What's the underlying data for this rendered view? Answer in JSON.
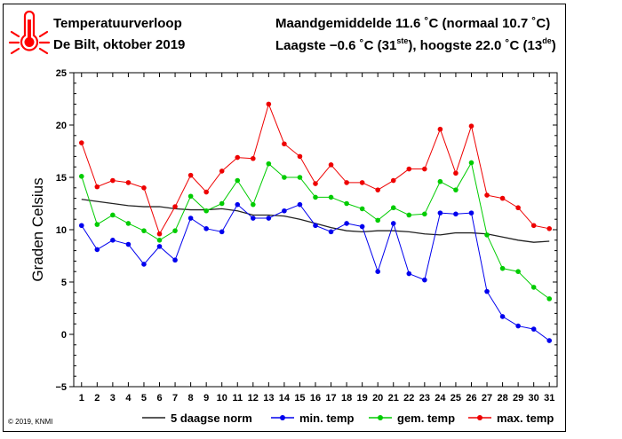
{
  "header": {
    "title": "Temperatuurverloop",
    "subtitle": "De Bilt, oktober 2019",
    "monthly_avg": "Maandgemiddelde 11.6 ˚C (normaal 10.7 ˚C)",
    "extremes_text_1": "Laagste −0.6 ˚C (31",
    "extremes_sup_1": "ste",
    "extremes_text_2": "), hoogste 22.0 ˚C (13",
    "extremes_sup_2": "de",
    "extremes_text_3": ")"
  },
  "footer": {
    "copyright": "© 2019, KNMI"
  },
  "colors": {
    "min": "#0000ee",
    "gem": "#00cc00",
    "max": "#ee0000",
    "norm": "#222222",
    "thermometer": "#ff0000"
  },
  "icons": {
    "logo": "thermometer-icon"
  },
  "chart_data": {
    "type": "line",
    "ylabel": "Graden Celsius",
    "xlabel": "",
    "ylim": [
      -5,
      25
    ],
    "yticks": [
      -5,
      0,
      5,
      10,
      15,
      20,
      25
    ],
    "x": [
      1,
      2,
      3,
      4,
      5,
      6,
      7,
      8,
      9,
      10,
      11,
      12,
      13,
      14,
      15,
      16,
      17,
      18,
      19,
      20,
      21,
      22,
      23,
      24,
      25,
      26,
      27,
      28,
      29,
      30,
      31
    ],
    "series": [
      {
        "name": "5 daagse norm",
        "key": "norm",
        "marker": false,
        "values": [
          12.9,
          12.7,
          12.5,
          12.3,
          12.2,
          12.2,
          12.0,
          11.9,
          11.9,
          12.0,
          11.8,
          11.4,
          11.4,
          11.3,
          11.0,
          10.6,
          10.2,
          9.9,
          9.8,
          9.9,
          9.9,
          9.8,
          9.6,
          9.5,
          9.7,
          9.7,
          9.6,
          9.3,
          9.0,
          8.8,
          8.9
        ]
      },
      {
        "name": "min. temp",
        "key": "min",
        "marker": true,
        "values": [
          10.4,
          8.1,
          9.0,
          8.6,
          6.7,
          8.4,
          7.1,
          11.1,
          10.1,
          9.8,
          12.4,
          11.1,
          11.1,
          11.8,
          12.4,
          10.4,
          9.8,
          10.6,
          10.3,
          6.0,
          10.6,
          5.8,
          5.2,
          11.6,
          11.5,
          11.6,
          4.1,
          1.7,
          0.8,
          0.5,
          -0.6
        ]
      },
      {
        "name": "gem. temp",
        "key": "gem",
        "marker": true,
        "values": [
          15.1,
          10.5,
          11.4,
          10.6,
          9.9,
          9.0,
          9.9,
          13.2,
          11.8,
          12.5,
          14.7,
          12.4,
          16.3,
          15.0,
          15.0,
          13.1,
          13.1,
          12.5,
          12.0,
          10.9,
          12.1,
          11.4,
          11.5,
          14.6,
          13.8,
          16.4,
          9.5,
          6.3,
          6.0,
          4.5,
          3.4
        ]
      },
      {
        "name": "max. temp",
        "key": "max",
        "marker": true,
        "values": [
          18.3,
          14.1,
          14.7,
          14.5,
          14.0,
          9.6,
          12.2,
          15.2,
          13.6,
          15.6,
          16.9,
          16.8,
          22.0,
          18.2,
          17.0,
          14.4,
          16.2,
          14.5,
          14.5,
          13.8,
          14.7,
          15.8,
          15.8,
          19.6,
          15.4,
          19.9,
          13.3,
          13.0,
          12.1,
          10.4,
          10.1
        ]
      }
    ],
    "legend_order": [
      "norm",
      "min",
      "gem",
      "max"
    ],
    "legend_placement": "bottom"
  }
}
